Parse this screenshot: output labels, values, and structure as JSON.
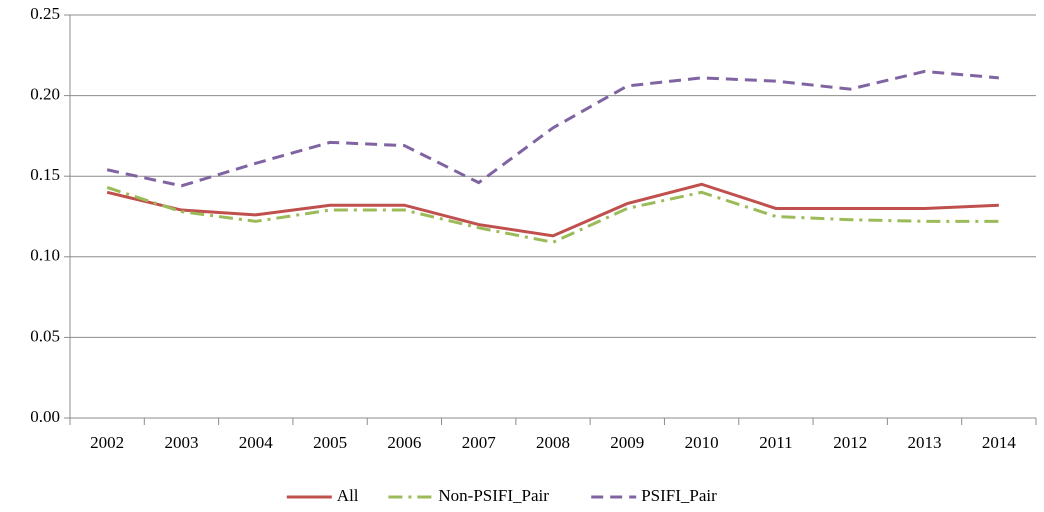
{
  "chart_data": {
    "type": "line",
    "categories": [
      "2002",
      "2003",
      "2004",
      "2005",
      "2006",
      "2007",
      "2008",
      "2009",
      "2010",
      "2011",
      "2012",
      "2013",
      "2014"
    ],
    "series": [
      {
        "name": "All",
        "color": "#c0504d",
        "style": "solid",
        "values": [
          0.14,
          0.129,
          0.126,
          0.132,
          0.132,
          0.12,
          0.113,
          0.133,
          0.145,
          0.13,
          0.13,
          0.13,
          0.132
        ]
      },
      {
        "name": "Non-PSIFI_Pair",
        "color": "#9bbb59",
        "style": "dashdot",
        "values": [
          0.143,
          0.128,
          0.122,
          0.129,
          0.129,
          0.118,
          0.109,
          0.13,
          0.14,
          0.125,
          0.123,
          0.122,
          0.122
        ]
      },
      {
        "name": "PSIFI_Pair",
        "color": "#8064a2",
        "style": "dashed",
        "values": [
          0.154,
          0.144,
          0.158,
          0.171,
          0.169,
          0.146,
          0.18,
          0.206,
          0.211,
          0.209,
          0.204,
          0.215,
          0.211
        ]
      }
    ],
    "ylim": [
      0,
      0.25
    ],
    "yticks": [
      {
        "value": 0,
        "label": "0.00"
      },
      0.05,
      {
        "value": 0.1,
        "label": "0.10"
      },
      0.15,
      {
        "value": 0.2,
        "label": "0.20"
      },
      0.25
    ],
    "grid": true,
    "legend": "bottom"
  }
}
